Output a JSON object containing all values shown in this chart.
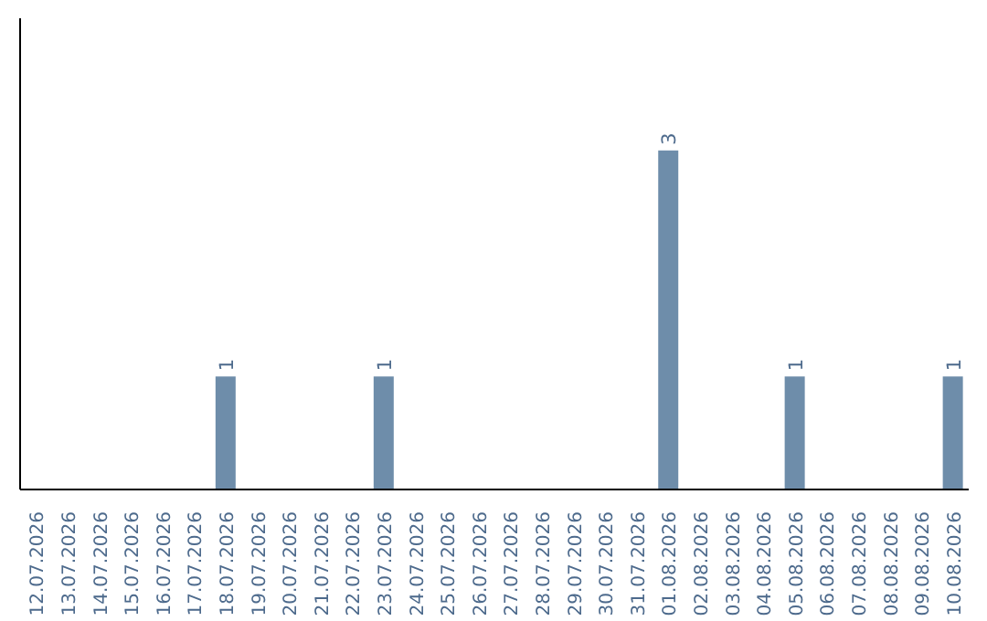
{
  "chart_data": {
    "type": "bar",
    "categories": [
      "12.07.2026",
      "13.07.2026",
      "14.07.2026",
      "15.07.2026",
      "16.07.2026",
      "17.07.2026",
      "18.07.2026",
      "19.07.2026",
      "20.07.2026",
      "21.07.2026",
      "22.07.2026",
      "23.07.2026",
      "24.07.2026",
      "25.07.2026",
      "26.07.2026",
      "27.07.2026",
      "28.07.2026",
      "29.07.2026",
      "30.07.2026",
      "31.07.2026",
      "01.08.2026",
      "02.08.2026",
      "03.08.2026",
      "04.08.2026",
      "05.08.2026",
      "06.08.2026",
      "07.08.2026",
      "08.08.2026",
      "09.08.2026",
      "10.08.2026"
    ],
    "values": [
      0,
      0,
      0,
      0,
      0,
      0,
      1,
      0,
      0,
      0,
      0,
      1,
      0,
      0,
      0,
      0,
      0,
      0,
      0,
      0,
      3,
      0,
      0,
      0,
      1,
      0,
      0,
      0,
      0,
      1
    ],
    "value_labels": [
      null,
      null,
      null,
      null,
      null,
      null,
      "1",
      null,
      null,
      null,
      null,
      "1",
      null,
      null,
      null,
      null,
      null,
      null,
      null,
      null,
      "3",
      null,
      null,
      null,
      "1",
      null,
      null,
      null,
      null,
      "1"
    ],
    "color": "#6e8daa"
  }
}
